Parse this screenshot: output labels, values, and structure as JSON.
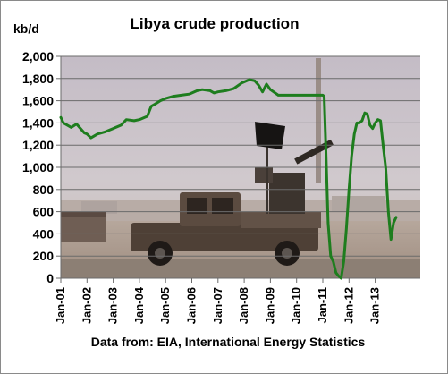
{
  "chart_data": {
    "type": "line",
    "title": "Libya crude production",
    "ylabel": "kb/d",
    "source": "Data from: EIA, International Energy Statistics",
    "ylim": [
      0,
      2000
    ],
    "y_ticks": [
      "0",
      "200",
      "400",
      "600",
      "800",
      "1,000",
      "1,200",
      "1,400",
      "1,600",
      "1,800",
      "2,000"
    ],
    "x_ticks": [
      "Jan-01",
      "Jan-02",
      "Jan-03",
      "Jan-04",
      "Jan-05",
      "Jan-06",
      "Jan-07",
      "Jan-08",
      "Jan-09",
      "Jan-10",
      "Jan-11",
      "Jan-12",
      "Jan-13"
    ],
    "grid": true,
    "legend": "none",
    "background": "photograph of an armed pickup truck in a desert, with a black flag",
    "series": [
      {
        "color": "#1e7d1e",
        "x": [
          2001.0,
          2001.1,
          2001.4,
          2001.6,
          2001.9,
          2002.0,
          2002.15,
          2002.4,
          2002.7,
          2003.0,
          2003.3,
          2003.5,
          2003.8,
          2004.0,
          2004.3,
          2004.45,
          2004.6,
          2004.8,
          2005.0,
          2005.3,
          2005.6,
          2005.9,
          2006.2,
          2006.4,
          2006.7,
          2006.85,
          2007.0,
          2007.3,
          2007.6,
          2007.9,
          2008.2,
          2008.4,
          2008.55,
          2008.7,
          2008.85,
          2009.0,
          2009.3,
          2009.6,
          2010.0,
          2010.4,
          2010.8,
          2011.0,
          2011.05,
          2011.1,
          2011.2,
          2011.3,
          2011.4,
          2011.5,
          2011.6,
          2011.7,
          2011.8,
          2011.9,
          2012.0,
          2012.1,
          2012.2,
          2012.3,
          2012.4,
          2012.5,
          2012.6,
          2012.7,
          2012.8,
          2012.9,
          2013.0,
          2013.1,
          2013.2,
          2013.3,
          2013.4,
          2013.5,
          2013.6,
          2013.7,
          2013.8
        ],
        "values": [
          1450,
          1400,
          1360,
          1390,
          1310,
          1300,
          1265,
          1300,
          1320,
          1350,
          1380,
          1430,
          1420,
          1430,
          1460,
          1550,
          1570,
          1600,
          1620,
          1640,
          1650,
          1660,
          1690,
          1700,
          1690,
          1670,
          1680,
          1690,
          1710,
          1760,
          1790,
          1780,
          1740,
          1680,
          1750,
          1700,
          1650,
          1650,
          1650,
          1650,
          1650,
          1650,
          1640,
          1300,
          500,
          200,
          150,
          50,
          20,
          0,
          150,
          450,
          800,
          1100,
          1300,
          1400,
          1400,
          1420,
          1490,
          1480,
          1380,
          1350,
          1400,
          1430,
          1420,
          1200,
          1000,
          600,
          350,
          500,
          550
        ]
      }
    ]
  }
}
